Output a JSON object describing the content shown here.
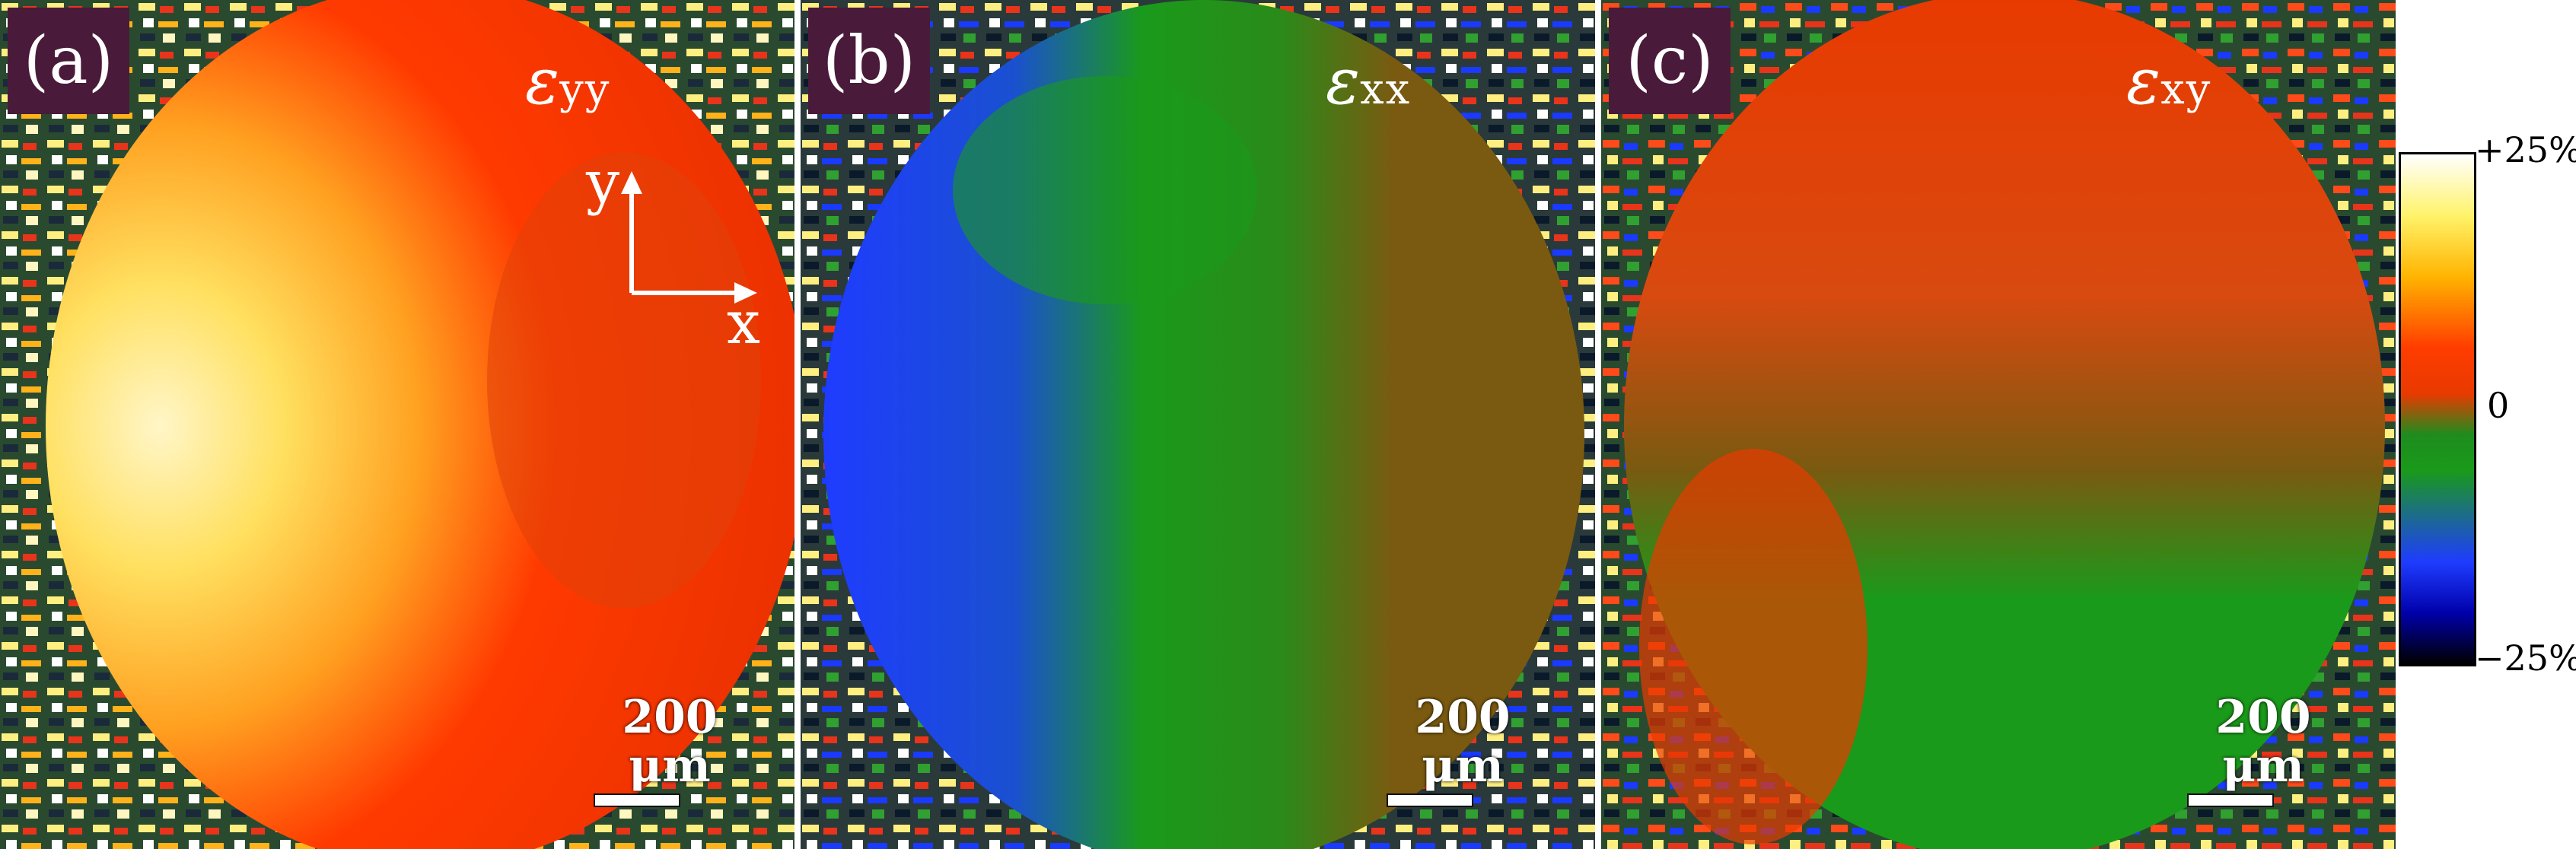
{
  "panels": [
    {
      "label": "(a)",
      "strain_symbol": "ε",
      "strain_sub": "yy",
      "scale_text": "200 μm"
    },
    {
      "label": "(b)",
      "strain_symbol": "ε",
      "strain_sub": "xx",
      "scale_text": "200 μm"
    },
    {
      "label": "(c)",
      "strain_symbol": "ε",
      "strain_sub": "xy",
      "scale_text": "200 μm"
    }
  ],
  "axes": {
    "y_label": "y",
    "x_label": "x"
  },
  "colorbar": {
    "top_label": "+25%",
    "mid_label": "0",
    "bottom_label": "−25%"
  },
  "colors": {
    "label_bg": "#4a1a3a",
    "hot": "#ff3c00",
    "warm": "#ffb400",
    "green": "#1a9a1a",
    "brown_green": "#7a5a10",
    "blue": "#1f3cff"
  }
}
